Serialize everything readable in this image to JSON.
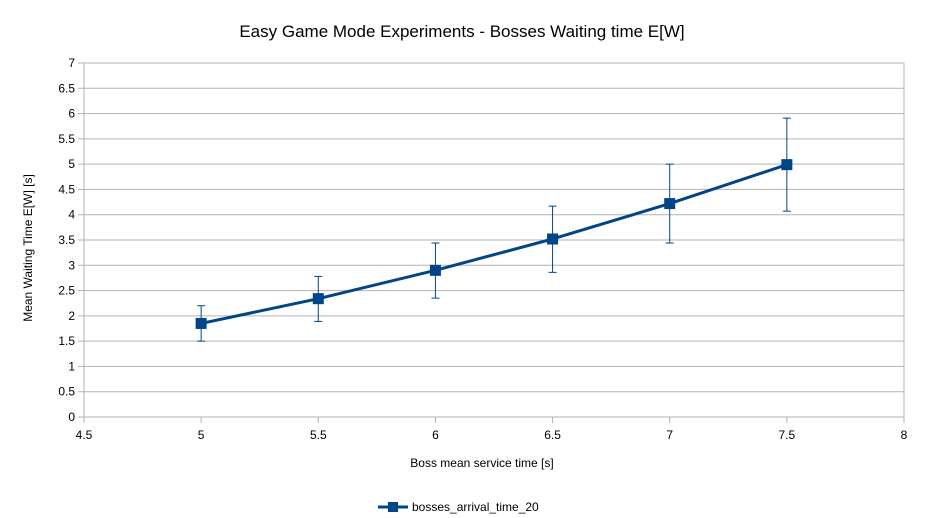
{
  "chart_data": {
    "type": "scatter",
    "title": "Easy Game Mode Experiments - Bosses Waiting time E[W]",
    "xlabel": "Boss mean service time [s]",
    "ylabel": "Mean Waiting Time E[W] [s]",
    "xlim": [
      4.5,
      8
    ],
    "ylim": [
      0,
      7
    ],
    "x_ticks": [
      4.5,
      5,
      5.5,
      6,
      6.5,
      7,
      7.5,
      8
    ],
    "y_ticks": [
      0,
      0.5,
      1,
      1.5,
      2,
      2.5,
      3,
      3.5,
      4,
      4.5,
      5,
      5.5,
      6,
      6.5,
      7
    ],
    "grid": "horizontal",
    "legend_position": "bottom",
    "series": [
      {
        "name": "bosses_arrival_time_20",
        "color": "#004586",
        "marker": "square",
        "points": [
          {
            "x": 5,
            "y": 1.85,
            "err_low": 1.5,
            "err_high": 2.2
          },
          {
            "x": 5.5,
            "y": 2.34,
            "err_low": 1.89,
            "err_high": 2.78
          },
          {
            "x": 6,
            "y": 2.9,
            "err_low": 2.35,
            "err_high": 3.44
          },
          {
            "x": 6.5,
            "y": 3.52,
            "err_low": 2.86,
            "err_high": 4.17
          },
          {
            "x": 7,
            "y": 4.22,
            "err_low": 3.44,
            "err_high": 5.0
          },
          {
            "x": 7.5,
            "y": 4.99,
            "err_low": 4.07,
            "err_high": 5.91
          }
        ]
      }
    ]
  }
}
